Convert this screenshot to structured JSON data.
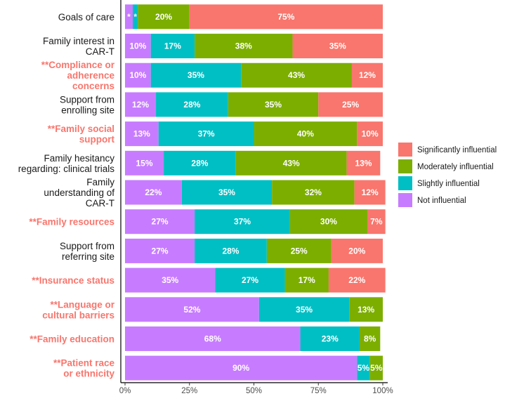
{
  "chart_data": {
    "type": "bar",
    "orientation": "horizontal",
    "stacked": true,
    "xlim": [
      0,
      100
    ],
    "x_ticks": [
      "0%",
      "25%",
      "50%",
      "75%",
      "100%"
    ],
    "grid": false,
    "legend_position": "right",
    "colors": {
      "Not influential": "#c77cff",
      "Slightly influential": "#00bfc4",
      "Moderately influential": "#7cae00",
      "Significantly influential": "#f8766d"
    },
    "highlight_color": "#f8766d",
    "legend_order": [
      "Significantly influential",
      "Moderately influential",
      "Slightly influential",
      "Not influential"
    ],
    "stack_order": [
      "Not influential",
      "Slightly influential",
      "Moderately influential",
      "Significantly influential"
    ],
    "categories": [
      {
        "label": "Goals of care",
        "highlight": false,
        "values": [
          3,
          2,
          20,
          75
        ],
        "labels": [
          "*",
          "*",
          "20%",
          "75%"
        ]
      },
      {
        "label": "Family interest in\nCAR-T",
        "highlight": false,
        "values": [
          10,
          17,
          38,
          35
        ],
        "labels": [
          "10%",
          "17%",
          "38%",
          "35%"
        ]
      },
      {
        "label": "**Compliance or\nadherence\nconcerns",
        "highlight": true,
        "values": [
          10,
          35,
          43,
          12
        ],
        "labels": [
          "10%",
          "35%",
          "43%",
          "12%"
        ]
      },
      {
        "label": "Support from\nenrolling site",
        "highlight": false,
        "values": [
          12,
          28,
          35,
          25
        ],
        "labels": [
          "12%",
          "28%",
          "35%",
          "25%"
        ]
      },
      {
        "label": "**Family social\nsupport",
        "highlight": true,
        "values": [
          13,
          37,
          40,
          10
        ],
        "labels": [
          "13%",
          "37%",
          "40%",
          "10%"
        ]
      },
      {
        "label": "Family hesitancy\nregarding: clinical trials",
        "highlight": false,
        "values": [
          15,
          28,
          43,
          13
        ],
        "labels": [
          "15%",
          "28%",
          "43%",
          "13%"
        ]
      },
      {
        "label": "Family\nunderstanding of\nCAR-T",
        "highlight": false,
        "values": [
          22,
          35,
          32,
          12
        ],
        "labels": [
          "22%",
          "35%",
          "32%",
          "12%"
        ]
      },
      {
        "label": "**Family resources",
        "highlight": true,
        "values": [
          27,
          37,
          30,
          7
        ],
        "labels": [
          "27%",
          "37%",
          "30%",
          "7%"
        ]
      },
      {
        "label": "Support from\nreferring site",
        "highlight": false,
        "values": [
          27,
          28,
          25,
          20
        ],
        "labels": [
          "27%",
          "28%",
          "25%",
          "20%"
        ]
      },
      {
        "label": "**Insurance status",
        "highlight": true,
        "values": [
          35,
          27,
          17,
          22
        ],
        "labels": [
          "35%",
          "27%",
          "17%",
          "22%"
        ]
      },
      {
        "label": "**Language or\ncultural barriers",
        "highlight": true,
        "values": [
          52,
          35,
          13,
          0
        ],
        "labels": [
          "52%",
          "35%",
          "13%",
          ""
        ]
      },
      {
        "label": "**Family education",
        "highlight": true,
        "values": [
          68,
          23,
          8,
          0
        ],
        "labels": [
          "68%",
          "23%",
          "8%",
          ""
        ]
      },
      {
        "label": "**Patient race\nor ethnicity",
        "highlight": true,
        "values": [
          90,
          5,
          5,
          0
        ],
        "labels": [
          "90%",
          "5%",
          "5%",
          ""
        ]
      }
    ]
  }
}
